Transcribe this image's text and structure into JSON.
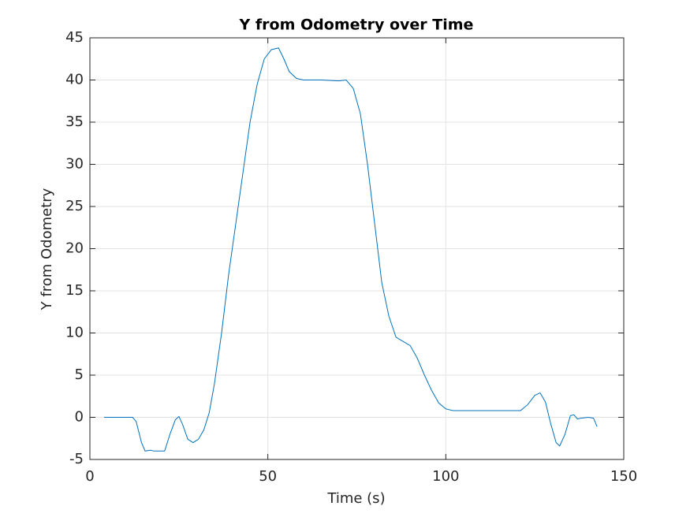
{
  "chart_data": {
    "type": "line",
    "title": "Y from Odometry over Time",
    "x_label": "Time (s)",
    "y_label": "Y from Odometry",
    "x": [
      4,
      12,
      13,
      14.5,
      15.5,
      17,
      18,
      21,
      22.5,
      24,
      25,
      26,
      27.5,
      29,
      30.5,
      32,
      33.5,
      35,
      37,
      39,
      41,
      43,
      45,
      47,
      49,
      51,
      53,
      54.5,
      56,
      58,
      60,
      65,
      70,
      72,
      74,
      76,
      78,
      80,
      82,
      84,
      86,
      88,
      90,
      92,
      94,
      96,
      98,
      100,
      102,
      110,
      118,
      121,
      123,
      125,
      126.5,
      128,
      129.5,
      131,
      132,
      133.5,
      135,
      136,
      137,
      138,
      140,
      141.5,
      142.5
    ],
    "series": [
      {
        "name": "Y",
        "color": "#0072bd",
        "values": [
          0,
          0,
          -0.5,
          -3,
          -4,
          -3.9,
          -4,
          -4,
          -2,
          -0.3,
          0.1,
          -0.8,
          -2.6,
          -3,
          -2.6,
          -1.5,
          0.5,
          4,
          10,
          17,
          23,
          29,
          35,
          39.5,
          42.5,
          43.6,
          43.8,
          42.5,
          41,
          40.2,
          40,
          40,
          39.9,
          40,
          39,
          36,
          30,
          23,
          16,
          12,
          9.5,
          9,
          8.5,
          7,
          5,
          3.2,
          1.7,
          1,
          0.8,
          0.8,
          0.8,
          0.8,
          1.5,
          2.6,
          2.9,
          1.8,
          -0.8,
          -3,
          -3.4,
          -2,
          0.2,
          0.3,
          -0.2,
          -0.1,
          0,
          -0.1,
          -1.1
        ]
      }
    ],
    "xlim": [
      0,
      150
    ],
    "ylim": [
      -5,
      45
    ],
    "xticks": [
      0,
      50,
      100,
      150
    ],
    "yticks": [
      -5,
      0,
      5,
      10,
      15,
      20,
      25,
      30,
      35,
      40,
      45
    ],
    "grid": true
  }
}
